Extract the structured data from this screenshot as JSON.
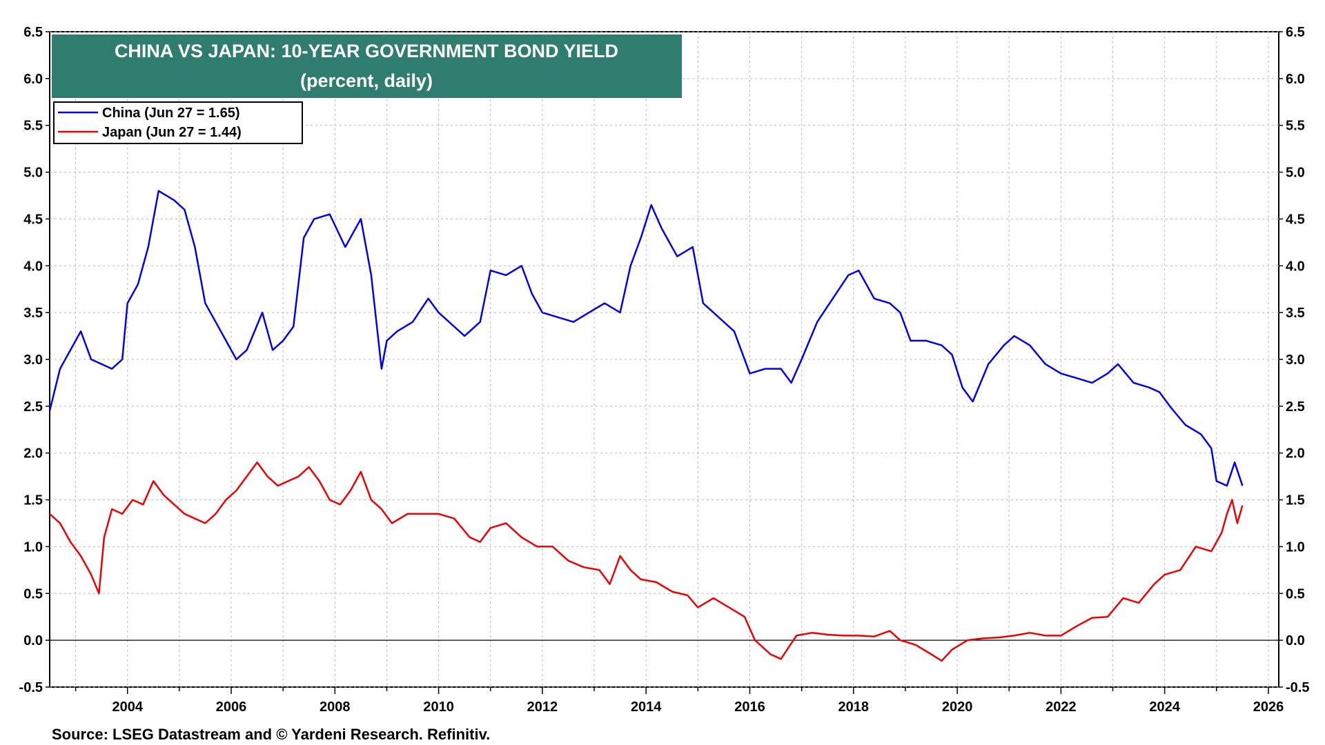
{
  "chart_data": {
    "type": "line",
    "title": "CHINA VS JAPAN: 10-YEAR GOVERNMENT BOND YIELD",
    "subtitle": "(percent, daily)",
    "source": "Source: LSEG Datastream and © Yardeni Research. Refinitiv.",
    "colors": {
      "title_box": "#2e7d6e",
      "china": "#0000ee",
      "japan": "#ee0000",
      "grid": "#b8b8b8"
    },
    "xlim": [
      2002.5,
      2026.2
    ],
    "ylim": [
      -0.5,
      6.5
    ],
    "x_ticks": [
      2004,
      2006,
      2008,
      2010,
      2012,
      2014,
      2016,
      2018,
      2020,
      2022,
      2024,
      2026
    ],
    "x_tick_labels": [
      "2004",
      "2006",
      "2008",
      "2010",
      "2012",
      "2014",
      "2016",
      "2018",
      "2020",
      "2022",
      "2024",
      "2026"
    ],
    "y_ticks": [
      -0.5,
      0.0,
      0.5,
      1.0,
      1.5,
      2.0,
      2.5,
      3.0,
      3.5,
      4.0,
      4.5,
      5.0,
      5.5,
      6.0,
      6.5
    ],
    "y_tick_labels": [
      "-0.5",
      "0.0",
      "0.5",
      "1.0",
      "1.5",
      "2.0",
      "2.5",
      "3.0",
      "3.5",
      "4.0",
      "4.5",
      "5.0",
      "5.5",
      "6.0",
      "6.5"
    ],
    "grid": true,
    "zero_line": true,
    "legend_position": "top-left",
    "series": [
      {
        "name": "China (Jun 27 = 1.65)",
        "color": "#0000ee",
        "x": [
          2002.5,
          2002.7,
          2002.9,
          2003.1,
          2003.3,
          2003.5,
          2003.7,
          2003.9,
          2004.0,
          2004.2,
          2004.4,
          2004.6,
          2004.9,
          2005.1,
          2005.3,
          2005.5,
          2005.7,
          2005.9,
          2006.1,
          2006.3,
          2006.6,
          2006.8,
          2007.0,
          2007.2,
          2007.4,
          2007.6,
          2007.9,
          2008.2,
          2008.5,
          2008.7,
          2008.9,
          2009.0,
          2009.2,
          2009.5,
          2009.8,
          2010.0,
          2010.3,
          2010.5,
          2010.8,
          2011.0,
          2011.3,
          2011.6,
          2011.8,
          2012.0,
          2012.3,
          2012.6,
          2012.9,
          2013.2,
          2013.5,
          2013.7,
          2013.9,
          2014.1,
          2014.3,
          2014.6,
          2014.9,
          2015.1,
          2015.4,
          2015.7,
          2016.0,
          2016.3,
          2016.6,
          2016.8,
          2017.0,
          2017.3,
          2017.6,
          2017.9,
          2018.1,
          2018.4,
          2018.7,
          2018.9,
          2019.1,
          2019.4,
          2019.7,
          2019.9,
          2020.1,
          2020.3,
          2020.6,
          2020.9,
          2021.1,
          2021.4,
          2021.7,
          2022.0,
          2022.3,
          2022.6,
          2022.9,
          2023.1,
          2023.4,
          2023.7,
          2023.9,
          2024.1,
          2024.4,
          2024.7,
          2024.9,
          2025.0,
          2025.2,
          2025.35,
          2025.5
        ],
        "values": [
          2.45,
          2.9,
          3.1,
          3.3,
          3.0,
          2.95,
          2.9,
          3.0,
          3.6,
          3.8,
          4.2,
          4.8,
          4.7,
          4.6,
          4.2,
          3.6,
          3.4,
          3.2,
          3.0,
          3.1,
          3.5,
          3.1,
          3.2,
          3.35,
          4.3,
          4.5,
          4.55,
          4.2,
          4.5,
          3.9,
          2.9,
          3.2,
          3.3,
          3.4,
          3.65,
          3.5,
          3.35,
          3.25,
          3.4,
          3.95,
          3.9,
          4.0,
          3.7,
          3.5,
          3.45,
          3.4,
          3.5,
          3.6,
          3.5,
          4.0,
          4.3,
          4.65,
          4.4,
          4.1,
          4.2,
          3.6,
          3.45,
          3.3,
          2.85,
          2.9,
          2.9,
          2.75,
          3.0,
          3.4,
          3.65,
          3.9,
          3.95,
          3.65,
          3.6,
          3.5,
          3.2,
          3.2,
          3.15,
          3.05,
          2.7,
          2.55,
          2.95,
          3.15,
          3.25,
          3.15,
          2.95,
          2.85,
          2.8,
          2.75,
          2.85,
          2.95,
          2.75,
          2.7,
          2.65,
          2.5,
          2.3,
          2.2,
          2.05,
          1.7,
          1.65,
          1.9,
          1.65
        ]
      },
      {
        "name": "Japan (Jun 27 = 1.44)",
        "color": "#ee0000",
        "x": [
          2002.5,
          2002.7,
          2002.9,
          2003.1,
          2003.3,
          2003.45,
          2003.55,
          2003.7,
          2003.9,
          2004.1,
          2004.3,
          2004.5,
          2004.7,
          2004.9,
          2005.1,
          2005.3,
          2005.5,
          2005.7,
          2005.9,
          2006.1,
          2006.3,
          2006.5,
          2006.7,
          2006.9,
          2007.1,
          2007.3,
          2007.5,
          2007.7,
          2007.9,
          2008.1,
          2008.3,
          2008.5,
          2008.7,
          2008.9,
          2009.1,
          2009.4,
          2009.7,
          2010.0,
          2010.3,
          2010.6,
          2010.8,
          2011.0,
          2011.3,
          2011.6,
          2011.9,
          2012.2,
          2012.5,
          2012.8,
          2013.1,
          2013.3,
          2013.5,
          2013.7,
          2013.9,
          2014.2,
          2014.5,
          2014.8,
          2015.0,
          2015.3,
          2015.6,
          2015.9,
          2016.1,
          2016.4,
          2016.6,
          2016.9,
          2017.2,
          2017.5,
          2017.8,
          2018.1,
          2018.4,
          2018.7,
          2018.9,
          2019.2,
          2019.5,
          2019.7,
          2019.9,
          2020.2,
          2020.5,
          2020.8,
          2021.1,
          2021.4,
          2021.7,
          2022.0,
          2022.3,
          2022.6,
          2022.9,
          2023.2,
          2023.5,
          2023.8,
          2024.0,
          2024.3,
          2024.6,
          2024.9,
          2025.1,
          2025.2,
          2025.3,
          2025.4,
          2025.5
        ],
        "values": [
          1.35,
          1.25,
          1.05,
          0.9,
          0.7,
          0.5,
          1.1,
          1.4,
          1.35,
          1.5,
          1.45,
          1.7,
          1.55,
          1.45,
          1.35,
          1.3,
          1.25,
          1.35,
          1.5,
          1.6,
          1.75,
          1.9,
          1.75,
          1.65,
          1.7,
          1.75,
          1.85,
          1.7,
          1.5,
          1.45,
          1.6,
          1.8,
          1.5,
          1.4,
          1.25,
          1.35,
          1.35,
          1.35,
          1.3,
          1.1,
          1.05,
          1.2,
          1.25,
          1.1,
          1.0,
          1.0,
          0.85,
          0.78,
          0.75,
          0.6,
          0.9,
          0.75,
          0.65,
          0.62,
          0.52,
          0.48,
          0.35,
          0.45,
          0.35,
          0.25,
          0.0,
          -0.15,
          -0.2,
          0.05,
          0.08,
          0.06,
          0.05,
          0.05,
          0.04,
          0.1,
          0.0,
          -0.05,
          -0.15,
          -0.22,
          -0.1,
          0.0,
          0.02,
          0.03,
          0.05,
          0.08,
          0.05,
          0.05,
          0.15,
          0.24,
          0.25,
          0.45,
          0.4,
          0.6,
          0.7,
          0.75,
          1.0,
          0.95,
          1.15,
          1.35,
          1.5,
          1.25,
          1.44
        ]
      }
    ]
  }
}
